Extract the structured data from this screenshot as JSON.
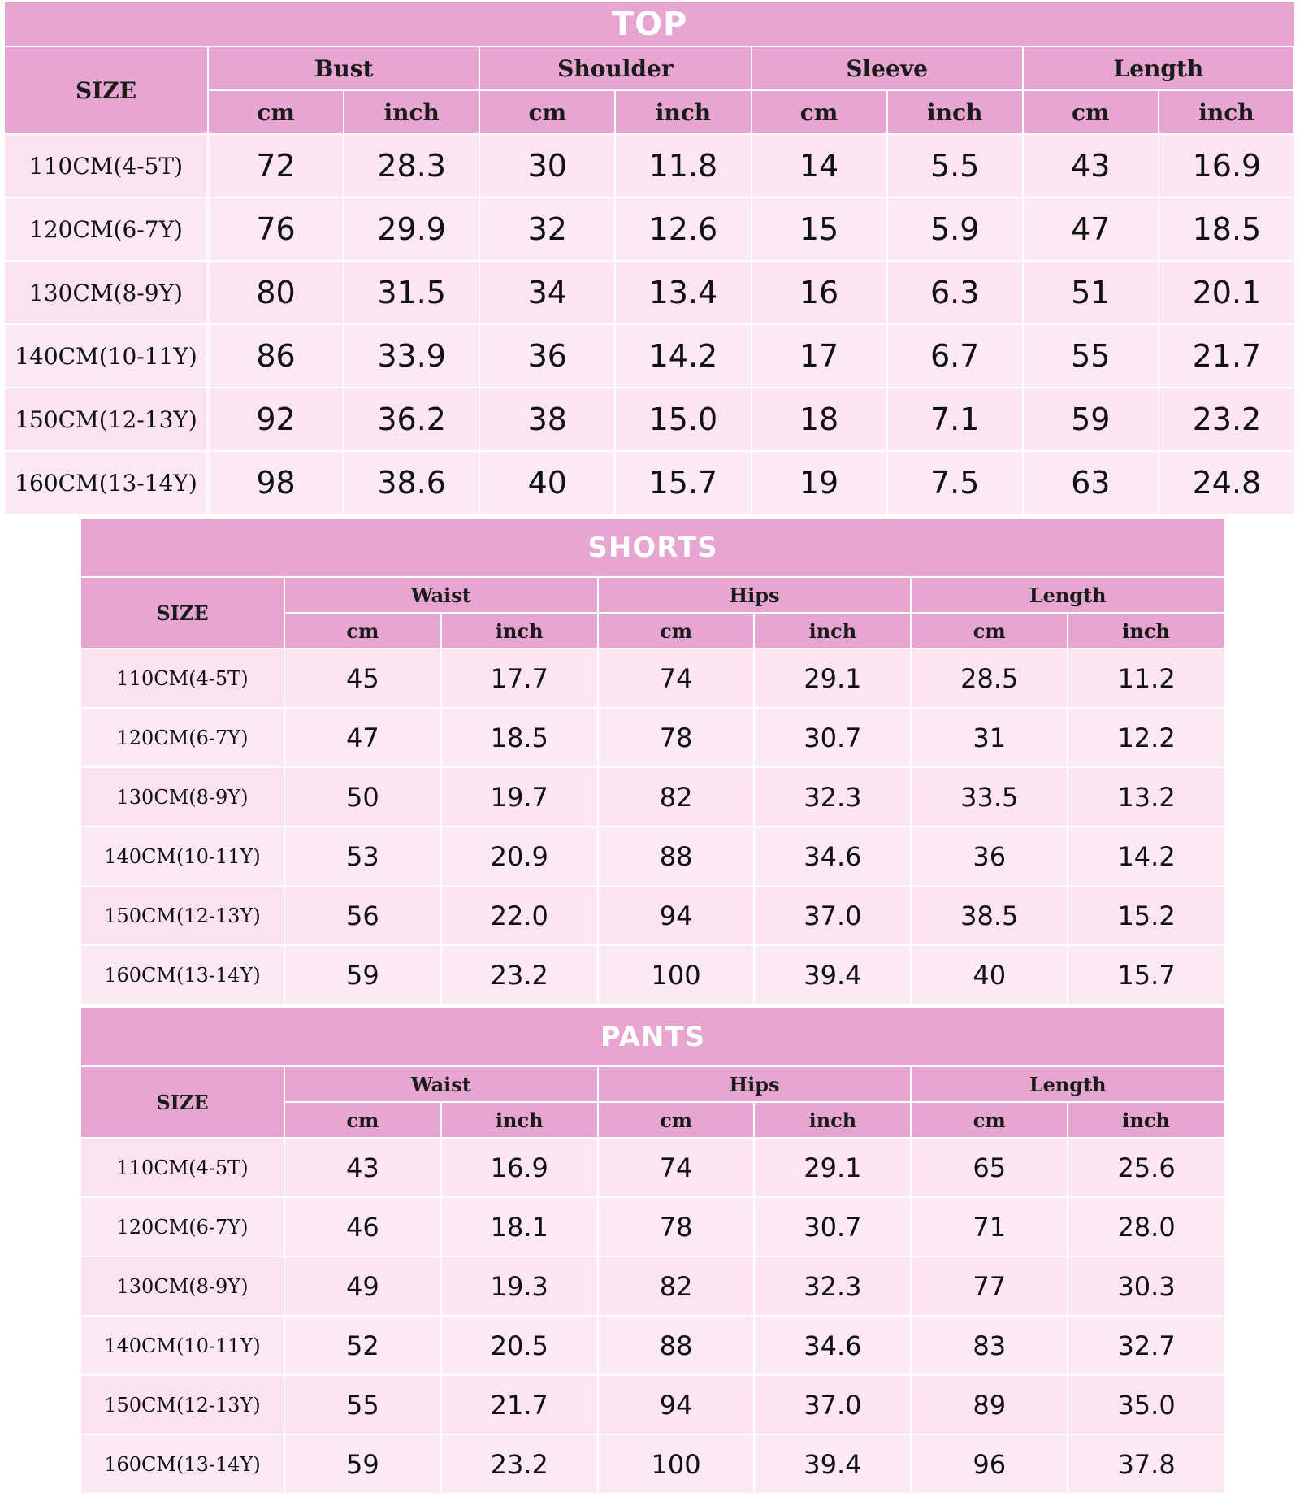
{
  "top": {
    "title": "TOP",
    "size_label": "SIZE",
    "groups": [
      "Bust",
      "Shoulder",
      "Sleeve",
      "Length"
    ],
    "units": [
      "cm",
      "inch"
    ],
    "rows": [
      {
        "size": "110CM(4-5T)",
        "values": [
          "72",
          "28.3",
          "30",
          "11.8",
          "14",
          "5.5",
          "43",
          "16.9"
        ]
      },
      {
        "size": "120CM(6-7Y)",
        "values": [
          "76",
          "29.9",
          "32",
          "12.6",
          "15",
          "5.9",
          "47",
          "18.5"
        ]
      },
      {
        "size": "130CM(8-9Y)",
        "values": [
          "80",
          "31.5",
          "34",
          "13.4",
          "16",
          "6.3",
          "51",
          "20.1"
        ]
      },
      {
        "size": "140CM(10-11Y)",
        "values": [
          "86",
          "33.9",
          "36",
          "14.2",
          "17",
          "6.7",
          "55",
          "21.7"
        ]
      },
      {
        "size": "150CM(12-13Y)",
        "values": [
          "92",
          "36.2",
          "38",
          "15.0",
          "18",
          "7.1",
          "59",
          "23.2"
        ]
      },
      {
        "size": "160CM(13-14Y)",
        "values": [
          "98",
          "38.6",
          "40",
          "15.7",
          "19",
          "7.5",
          "63",
          "24.8"
        ]
      }
    ]
  },
  "shorts": {
    "title": "SHORTS",
    "size_label": "SIZE",
    "groups": [
      "Waist",
      "Hips",
      "Length"
    ],
    "units": [
      "cm",
      "inch"
    ],
    "rows": [
      {
        "size": "110CM(4-5T)",
        "values": [
          "45",
          "17.7",
          "74",
          "29.1",
          "28.5",
          "11.2"
        ]
      },
      {
        "size": "120CM(6-7Y)",
        "values": [
          "47",
          "18.5",
          "78",
          "30.7",
          "31",
          "12.2"
        ]
      },
      {
        "size": "130CM(8-9Y)",
        "values": [
          "50",
          "19.7",
          "82",
          "32.3",
          "33.5",
          "13.2"
        ]
      },
      {
        "size": "140CM(10-11Y)",
        "values": [
          "53",
          "20.9",
          "88",
          "34.6",
          "36",
          "14.2"
        ]
      },
      {
        "size": "150CM(12-13Y)",
        "values": [
          "56",
          "22.0",
          "94",
          "37.0",
          "38.5",
          "15.2"
        ]
      },
      {
        "size": "160CM(13-14Y)",
        "values": [
          "59",
          "23.2",
          "100",
          "39.4",
          "40",
          "15.7"
        ]
      }
    ]
  },
  "pants": {
    "title": "PANTS",
    "size_label": "SIZE",
    "groups": [
      "Waist",
      "Hips",
      "Length"
    ],
    "units": [
      "cm",
      "inch"
    ],
    "rows": [
      {
        "size": "110CM(4-5T)",
        "values": [
          "43",
          "16.9",
          "74",
          "29.1",
          "65",
          "25.6"
        ]
      },
      {
        "size": "120CM(6-7Y)",
        "values": [
          "46",
          "18.1",
          "78",
          "30.7",
          "71",
          "28.0"
        ]
      },
      {
        "size": "130CM(8-9Y)",
        "values": [
          "49",
          "19.3",
          "82",
          "32.3",
          "77",
          "30.3"
        ]
      },
      {
        "size": "140CM(10-11Y)",
        "values": [
          "52",
          "20.5",
          "88",
          "34.6",
          "83",
          "32.7"
        ]
      },
      {
        "size": "150CM(12-13Y)",
        "values": [
          "55",
          "21.7",
          "94",
          "37.0",
          "89",
          "35.0"
        ]
      },
      {
        "size": "160CM(13-14Y)",
        "values": [
          "59",
          "23.2",
          "100",
          "39.4",
          "96",
          "37.8"
        ]
      }
    ]
  }
}
